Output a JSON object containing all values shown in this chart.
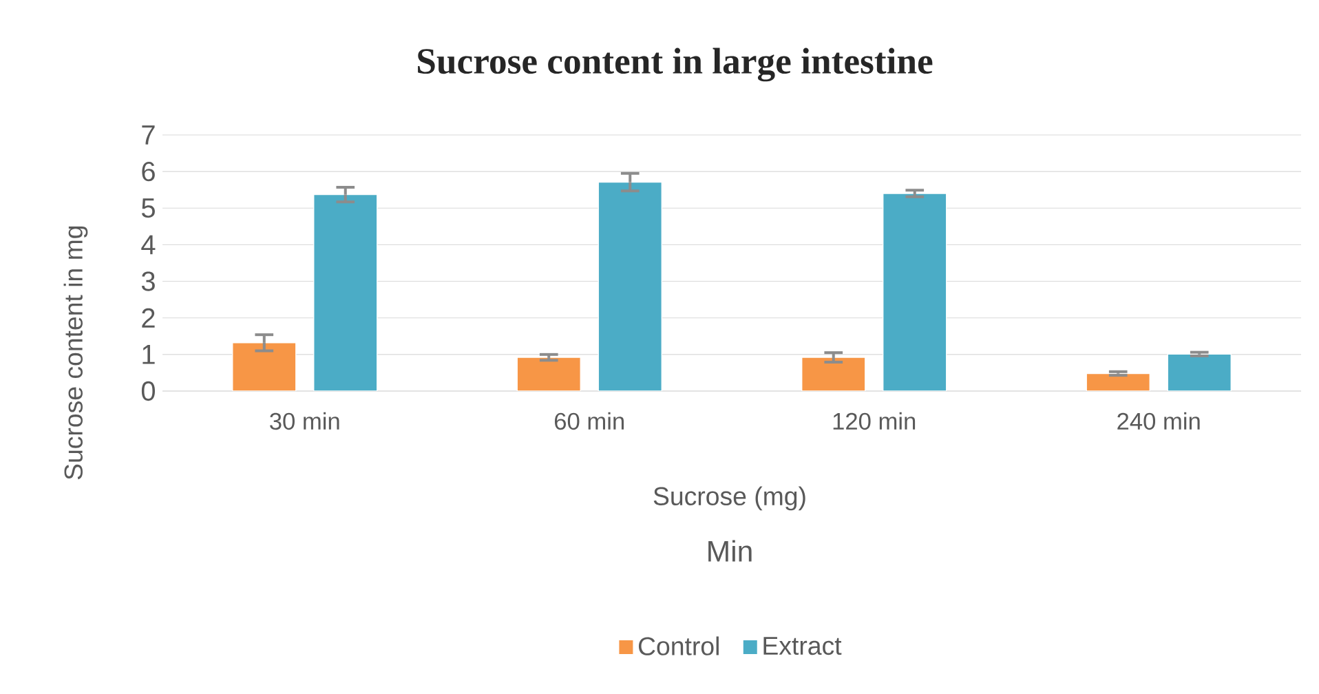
{
  "chart_data": {
    "type": "bar",
    "title": "Sucrose content in large intestine",
    "xlabel": "Min",
    "ylabel": "Sucrose content in mg",
    "annotations": [
      "Sucrose (mg)"
    ],
    "categories": [
      "30 min",
      "60 min",
      "120 min",
      "240 min"
    ],
    "series": [
      {
        "name": "Control",
        "color": "#f79646",
        "values": [
          1.32,
          0.92,
          0.92,
          0.48
        ],
        "errors": [
          0.22,
          0.08,
          0.13,
          0.05
        ]
      },
      {
        "name": "Extract",
        "color": "#4bacc6",
        "values": [
          5.37,
          5.71,
          5.4,
          1.01
        ],
        "errors": [
          0.2,
          0.24,
          0.09,
          0.05
        ]
      }
    ],
    "ylim": [
      0,
      7
    ],
    "yticks": [
      0,
      1,
      2,
      3,
      4,
      5,
      6,
      7
    ],
    "grid": "y",
    "legend": "bottom"
  }
}
